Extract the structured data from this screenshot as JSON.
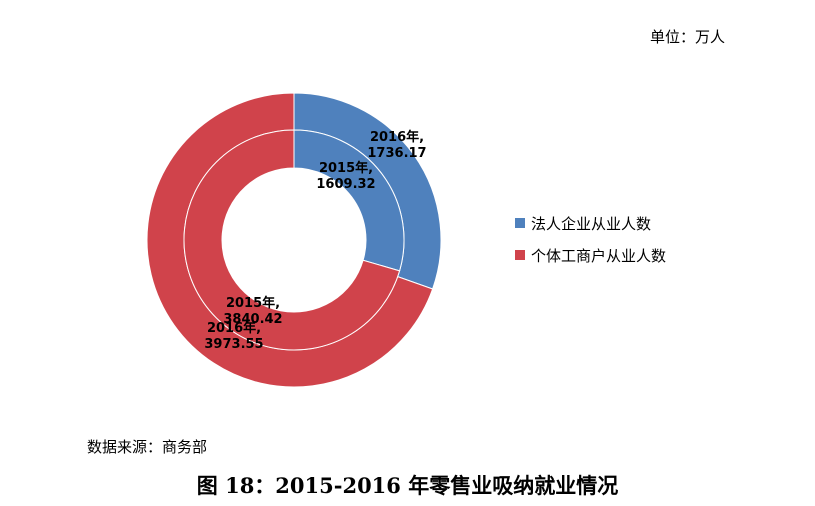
{
  "page": {
    "unit_label": "单位：万人",
    "source_note": "数据来源：商务部",
    "caption": "图 18：2015-2016 年零售业吸纳就业情况"
  },
  "chart_data": {
    "type": "pie",
    "subtype": "donut",
    "categories": [
      "法人企业从业人数",
      "个体工商户从业人数"
    ],
    "colors": [
      "#4F81BD",
      "#D0434B"
    ],
    "series": [
      {
        "name": "2016年",
        "ring": "outer",
        "values": [
          1736.17,
          3973.55
        ],
        "labels": [
          [
            "2016年,",
            "1736.17"
          ],
          [
            "2016年,",
            "3973.55"
          ]
        ]
      },
      {
        "name": "2015年",
        "ring": "inner",
        "values": [
          1609.32,
          3840.42
        ],
        "labels": [
          [
            "2015年,",
            "1609.32"
          ],
          [
            "2015年,",
            "3840.42"
          ]
        ]
      }
    ],
    "legend_position": "right"
  }
}
